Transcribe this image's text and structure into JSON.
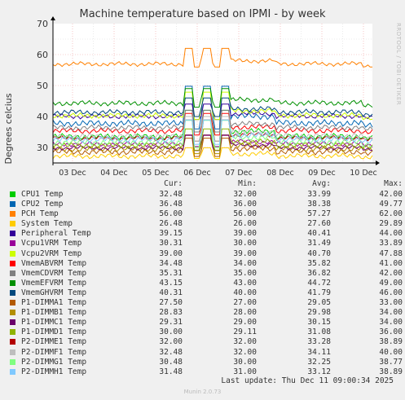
{
  "title": "Machine temperature based on IPMI - by week",
  "side_label": "RRDTOOL / TOBI OETIKER",
  "footer": "Munin 2.0.73",
  "last_update": "Last update: Thu Dec 11 09:00:34 2025",
  "legend_headers": {
    "cur": "Cur:",
    "min": "Min:",
    "avg": "Avg:",
    "max": "Max:"
  },
  "chart_data": {
    "type": "line",
    "title": "Machine temperature based on IPMI - by week",
    "ylabel": "Degrees celcius",
    "ylim": [
      25,
      70
    ],
    "yticks": [
      30,
      40,
      50,
      60,
      70
    ],
    "xlabels": [
      "03 Dec",
      "04 Dec",
      "05 Dec",
      "06 Dec",
      "07 Dec",
      "08 Dec",
      "09 Dec",
      "10 Dec"
    ],
    "grid": true,
    "series": [
      {
        "name": "CPU1 Temp",
        "color": "#00cc00",
        "cur": "32.48",
        "min": "32.00",
        "avg": "33.99",
        "max": "42.00"
      },
      {
        "name": "CPU2 Temp",
        "color": "#0066b3",
        "cur": "36.48",
        "min": "36.00",
        "avg": "38.38",
        "max": "49.77"
      },
      {
        "name": "PCH Temp",
        "color": "#ff8000",
        "cur": "56.00",
        "min": "56.00",
        "avg": "57.27",
        "max": "62.00"
      },
      {
        "name": "System Temp",
        "color": "#ffcc00",
        "cur": "26.48",
        "min": "26.00",
        "avg": "27.60",
        "max": "29.89"
      },
      {
        "name": "Peripheral Temp",
        "color": "#330099",
        "cur": "39.15",
        "min": "39.00",
        "avg": "40.41",
        "max": "44.00"
      },
      {
        "name": "Vcpu1VRM Temp",
        "color": "#990099",
        "cur": "30.31",
        "min": "30.00",
        "avg": "31.49",
        "max": "33.89"
      },
      {
        "name": "Vcpu2VRM Temp",
        "color": "#ccff00",
        "cur": "39.00",
        "min": "39.00",
        "avg": "40.70",
        "max": "47.88"
      },
      {
        "name": "VmemABVRM Temp",
        "color": "#ff0000",
        "cur": "34.48",
        "min": "34.00",
        "avg": "35.82",
        "max": "41.00"
      },
      {
        "name": "VmemCDVRM Temp",
        "color": "#808080",
        "cur": "35.31",
        "min": "35.00",
        "avg": "36.82",
        "max": "42.00"
      },
      {
        "name": "VmemEFVRM Temp",
        "color": "#008f00",
        "cur": "43.15",
        "min": "43.00",
        "avg": "44.72",
        "max": "49.00"
      },
      {
        "name": "VmemGHVRM Temp",
        "color": "#00487d",
        "cur": "40.31",
        "min": "40.00",
        "avg": "41.79",
        "max": "46.00"
      },
      {
        "name": "P1-DIMMA1 Temp",
        "color": "#b35a00",
        "cur": "27.50",
        "min": "27.00",
        "avg": "29.05",
        "max": "33.00"
      },
      {
        "name": "P1-DIMMB1 Temp",
        "color": "#b38f00",
        "cur": "28.83",
        "min": "28.00",
        "avg": "29.98",
        "max": "34.00"
      },
      {
        "name": "P1-DIMMC1 Temp",
        "color": "#6b006b",
        "cur": "29.31",
        "min": "29.00",
        "avg": "30.15",
        "max": "34.00"
      },
      {
        "name": "P1-DIMMD1 Temp",
        "color": "#8fb300",
        "cur": "30.00",
        "min": "29.11",
        "avg": "31.08",
        "max": "36.00"
      },
      {
        "name": "P2-DIMME1 Temp",
        "color": "#b30000",
        "cur": "32.00",
        "min": "32.00",
        "avg": "33.28",
        "max": "38.89"
      },
      {
        "name": "P2-DIMMF1 Temp",
        "color": "#bebebe",
        "cur": "32.48",
        "min": "32.00",
        "avg": "34.11",
        "max": "40.00"
      },
      {
        "name": "P2-DIMMG1 Temp",
        "color": "#80ff80",
        "cur": "30.48",
        "min": "30.00",
        "avg": "32.25",
        "max": "38.77"
      },
      {
        "name": "P2-DIMMH1 Temp",
        "color": "#80c9ff",
        "cur": "31.48",
        "min": "31.00",
        "avg": "33.12",
        "max": "38.89"
      }
    ]
  }
}
